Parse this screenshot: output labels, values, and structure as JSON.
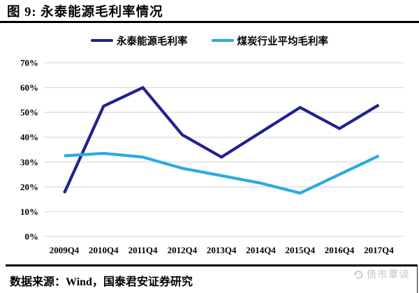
{
  "header": {
    "title": "图 9: 永泰能源毛利率情况"
  },
  "chart_data": {
    "type": "line",
    "title": "图 9: 永泰能源毛利率情况",
    "categories": [
      "2009Q4",
      "2010Q4",
      "2011Q4",
      "2012Q4",
      "2013Q4",
      "2014Q4",
      "2015Q4",
      "2016Q4",
      "2017Q4"
    ],
    "series": [
      {
        "name": "永泰能源毛利率",
        "color": "#21218F",
        "values": [
          17.5,
          52.5,
          60.0,
          41.0,
          32.0,
          42.0,
          52.0,
          43.5,
          53.0
        ]
      },
      {
        "name": "煤炭行业平均毛利率",
        "color": "#29ABE2",
        "values": [
          32.5,
          33.5,
          32.0,
          27.5,
          24.5,
          21.5,
          17.5,
          25.0,
          32.5
        ]
      }
    ],
    "xlabel": "",
    "ylabel": "",
    "ylim": [
      0,
      70
    ],
    "yticks": [
      0,
      10,
      20,
      30,
      40,
      50,
      60,
      70
    ],
    "ytick_suffix": "%",
    "grid": "horizontal",
    "legend_position": "top-center"
  },
  "footer": {
    "source_text": "数据来源：Wind，国泰君安证券研究",
    "watermark_text": "债市覃谈"
  },
  "colors": {
    "series1": "#21218F",
    "series2": "#29ABE2",
    "gridline": "#DADADA",
    "rule": "#000000",
    "watermark": "#C2C2C2"
  }
}
